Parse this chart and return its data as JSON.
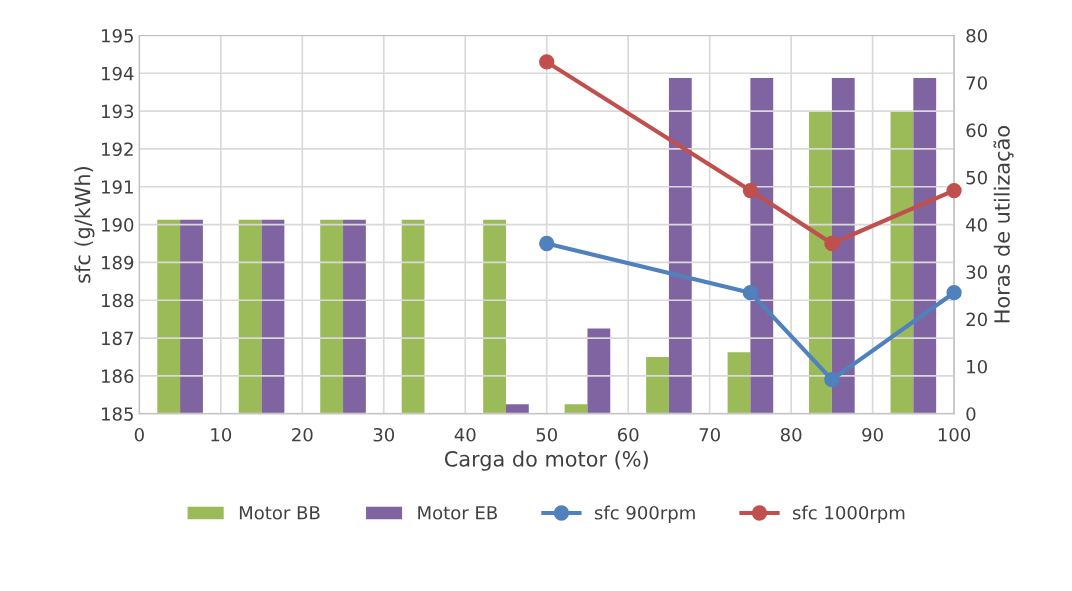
{
  "chart_data": {
    "type": "bar",
    "xlabel": "Carga do motor (%)",
    "ylabel": "sfc (g/kWh)",
    "y2label": "Horas de utilização",
    "xlim": [
      0,
      100
    ],
    "xticks": [
      0,
      10,
      20,
      30,
      40,
      50,
      60,
      70,
      80,
      90,
      100
    ],
    "ylim": [
      185,
      195
    ],
    "yticks": [
      185,
      186,
      187,
      188,
      189,
      190,
      191,
      192,
      193,
      194,
      195
    ],
    "y2lim": [
      0,
      80
    ],
    "y2ticks": [
      0,
      10,
      20,
      30,
      40,
      50,
      60,
      70,
      80
    ],
    "grid": true,
    "legend": "bottom",
    "series": [
      {
        "name": "Motor BB",
        "axis": "y2",
        "color": "#9bbb59",
        "x": [
          5,
          15,
          25,
          35,
          45,
          55,
          65,
          75,
          85,
          95
        ],
        "values": [
          41,
          41,
          41,
          41,
          41,
          2,
          12,
          13,
          64,
          64
        ]
      },
      {
        "name": "Motor EB",
        "axis": "y2",
        "color": "#8064a2",
        "x": [
          5,
          15,
          25,
          35,
          45,
          55,
          65,
          75,
          85,
          95
        ],
        "values": [
          41,
          41,
          41,
          null,
          2,
          18,
          71,
          71,
          71,
          71
        ]
      },
      {
        "name": "sfc 900rpm",
        "type": "line",
        "color": "#4f81bd",
        "marker": "circle",
        "x": [
          50,
          75,
          85,
          100
        ],
        "values": [
          189.5,
          188.2,
          185.9,
          188.2
        ]
      },
      {
        "name": "sfc 1000rpm",
        "type": "line",
        "color": "#c0504d",
        "marker": "circle",
        "x": [
          50,
          75,
          85,
          100
        ],
        "values": [
          194.3,
          190.9,
          189.5,
          190.9
        ]
      }
    ]
  }
}
